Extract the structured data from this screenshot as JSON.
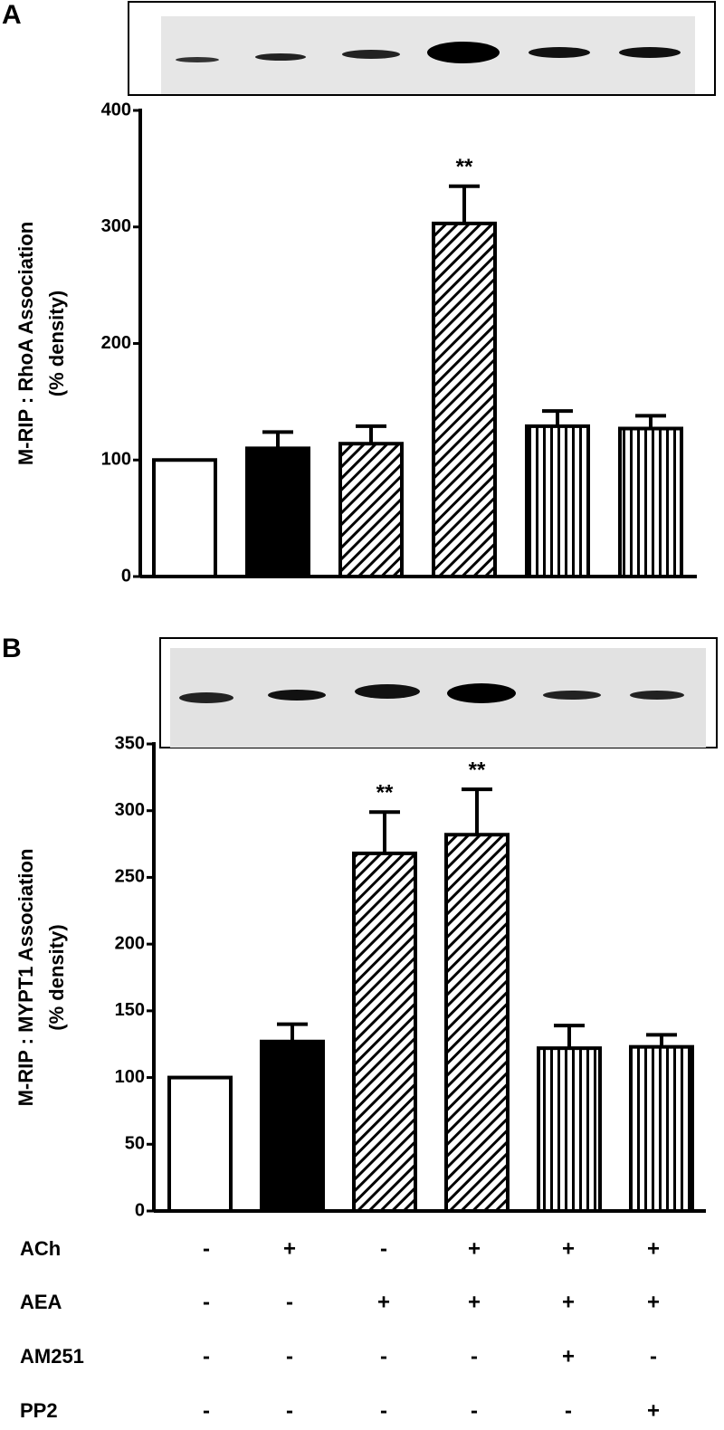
{
  "chart_data": [
    {
      "type": "bar",
      "panel": "A",
      "ylabel": [
        "M-RIP : RhoA Association",
        "(% density)"
      ],
      "categories": [
        null,
        null,
        null,
        null,
        null,
        null
      ],
      "values": [
        100,
        110,
        114,
        303,
        129,
        127
      ],
      "errors": [
        null,
        14,
        15,
        32,
        13,
        11
      ],
      "annotations": [
        null,
        null,
        null,
        "**",
        null,
        null
      ],
      "fills": [
        "white",
        "black",
        "diagonal",
        "diagonal",
        "vertical",
        "vertical"
      ],
      "ylim": [
        0,
        400
      ],
      "yticks": [
        0,
        100,
        200,
        300,
        400
      ]
    },
    {
      "type": "bar",
      "panel": "B",
      "ylabel": [
        "M-RIP : MYPT1 Association",
        "(% density)"
      ],
      "categories": [
        null,
        null,
        null,
        null,
        null,
        null
      ],
      "values": [
        100,
        127,
        268,
        282,
        122,
        123
      ],
      "errors": [
        null,
        13,
        31,
        34,
        17,
        9
      ],
      "annotations": [
        null,
        null,
        "**",
        "**",
        null,
        null
      ],
      "fills": [
        "white",
        "black",
        "diagonal",
        "diagonal",
        "vertical",
        "vertical"
      ],
      "ylim": [
        0,
        350
      ],
      "yticks": [
        0,
        50,
        100,
        150,
        200,
        250,
        300,
        350
      ]
    }
  ],
  "conditions": [
    {
      "label": "ACh",
      "values": [
        "-",
        "+",
        "-",
        "+",
        "+",
        "+"
      ]
    },
    {
      "label": "AEA",
      "values": [
        "-",
        "-",
        "+",
        "+",
        "+",
        "+"
      ]
    },
    {
      "label": "AM251",
      "values": [
        "-",
        "-",
        "-",
        "-",
        "+",
        "-"
      ]
    },
    {
      "label": "PP2",
      "values": [
        "-",
        "-",
        "-",
        "-",
        "-",
        "+"
      ]
    }
  ]
}
